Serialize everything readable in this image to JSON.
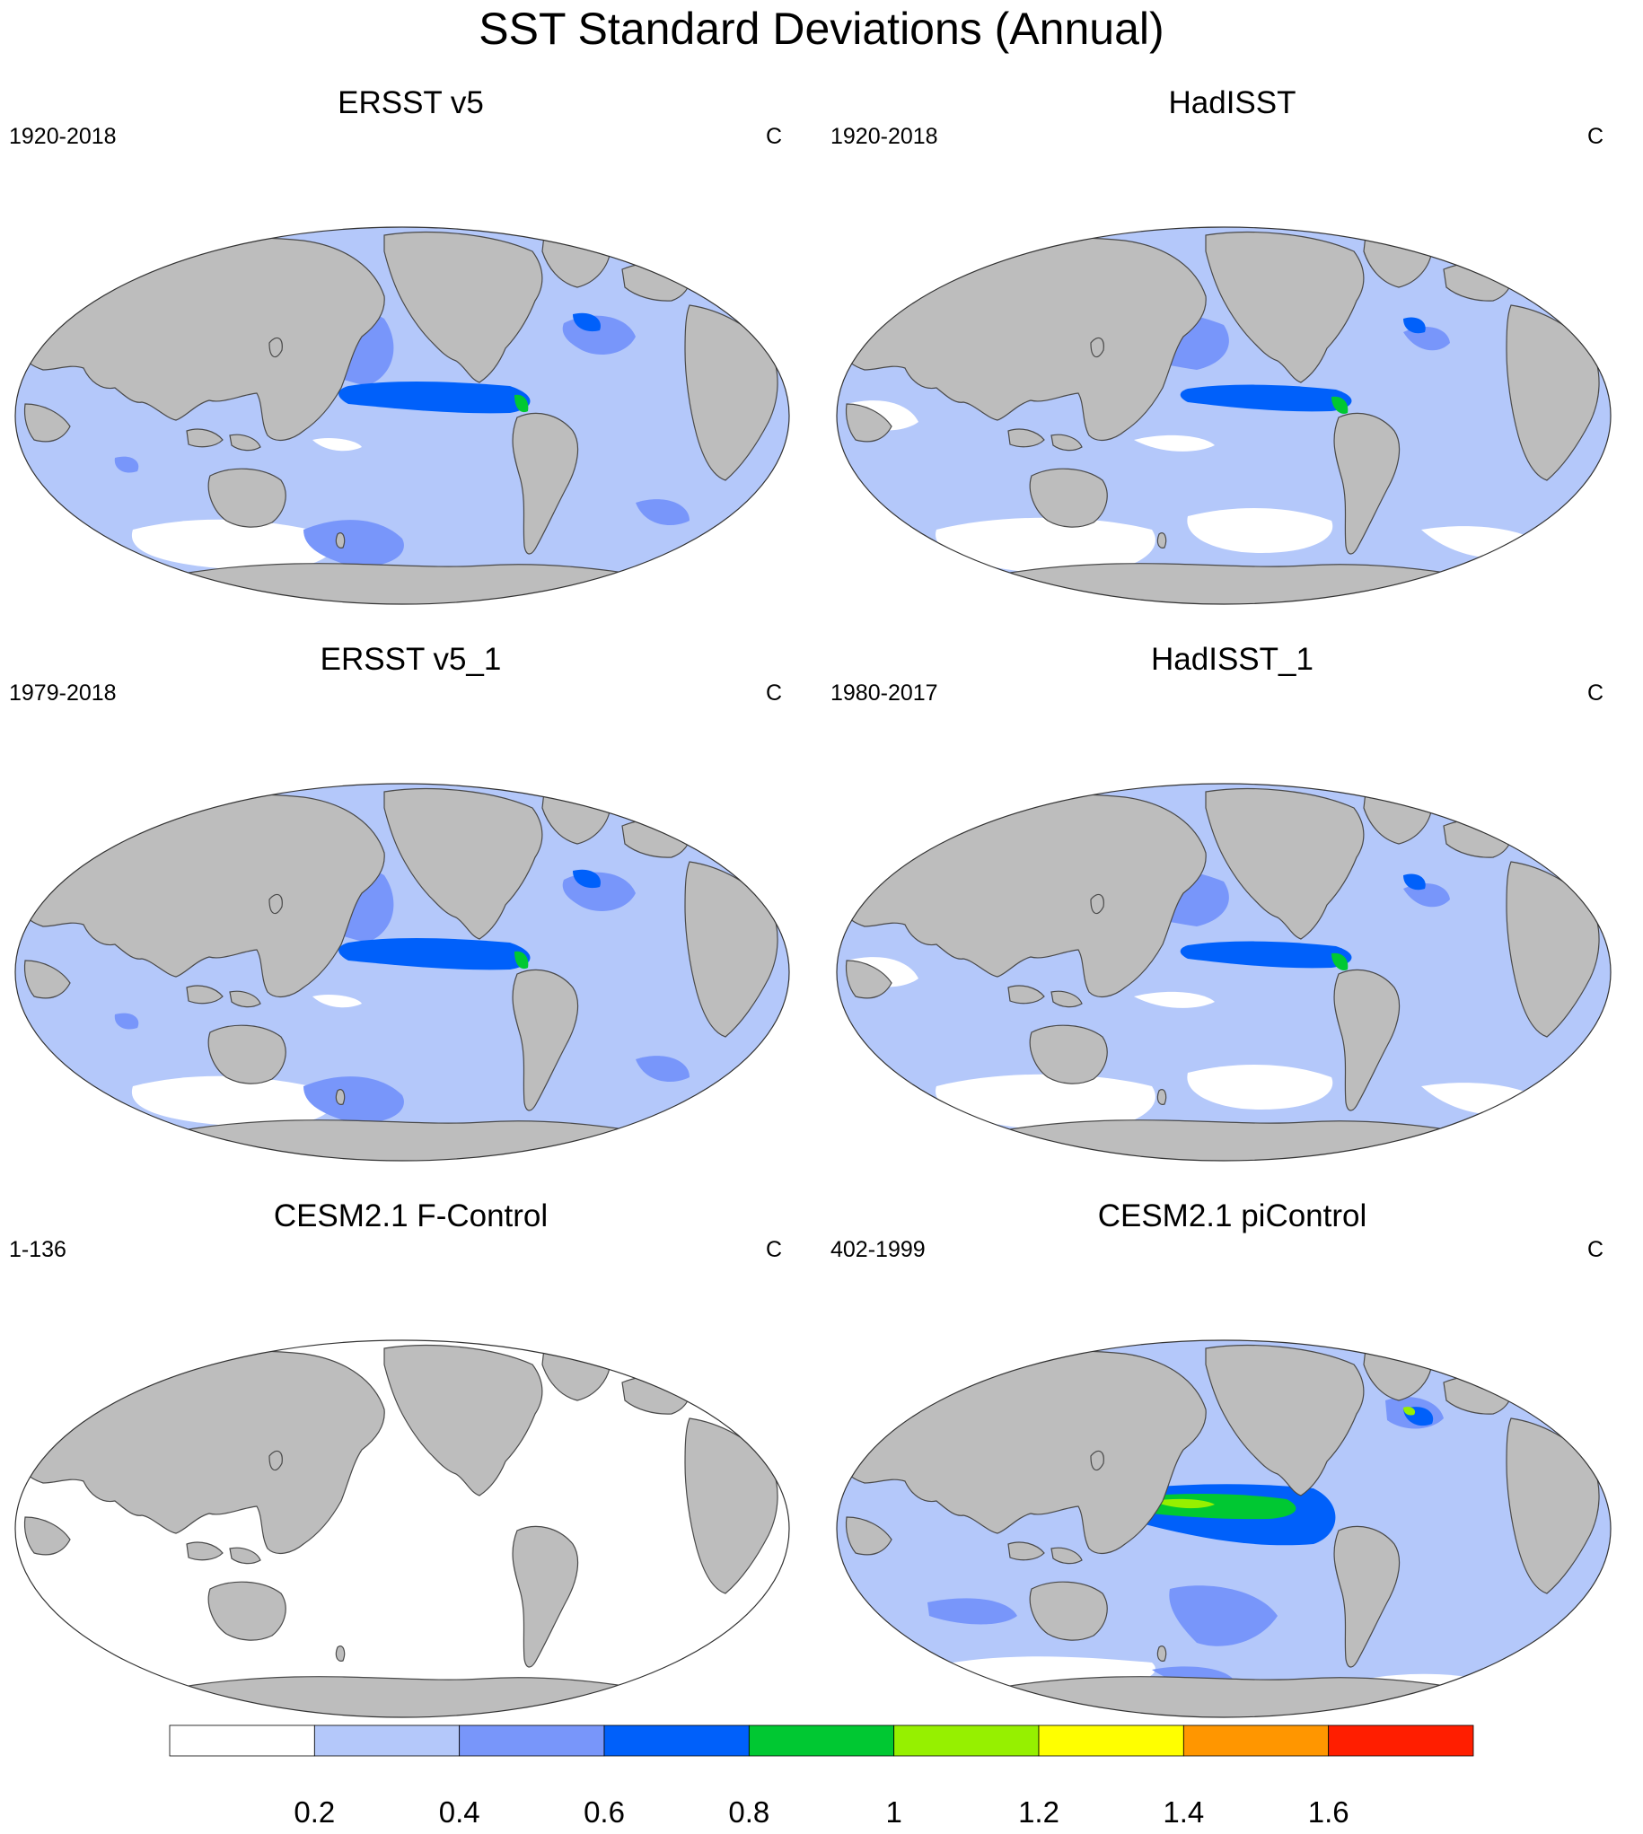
{
  "figure": {
    "title": "SST Standard Deviations (Annual)"
  },
  "colors": {
    "land": "#bdbdbd",
    "land_outline": "#4a4a4a",
    "ocean_levels": [
      "#ffffff",
      "#b4c8fa",
      "#7896fa",
      "#0060fa",
      "#00c832",
      "#96f000",
      "#ffff00",
      "#ff9600",
      "#ff1e00"
    ]
  },
  "panels": [
    {
      "title": "ERSST v5",
      "period": "1920-2018",
      "units": "C",
      "map": "ersst"
    },
    {
      "title": "HadISST",
      "period": "1920-2018",
      "units": "C",
      "map": "hadisst"
    },
    {
      "title": "ERSST v5_1",
      "period": "1979-2018",
      "units": "C",
      "map": "ersst"
    },
    {
      "title": "HadISST_1",
      "period": "1980-2017",
      "units": "C",
      "map": "hadisst"
    },
    {
      "title": "CESM2.1 F-Control",
      "period": "1-136",
      "units": "C",
      "map": "fcontrol"
    },
    {
      "title": "CESM2.1 piControl",
      "period": "402-1999",
      "units": "C",
      "map": "picontrol"
    }
  ],
  "colorbar": {
    "labels": [
      "0.2",
      "0.4",
      "0.6",
      "0.8",
      "1",
      "1.2",
      "1.4",
      "1.6"
    ]
  }
}
